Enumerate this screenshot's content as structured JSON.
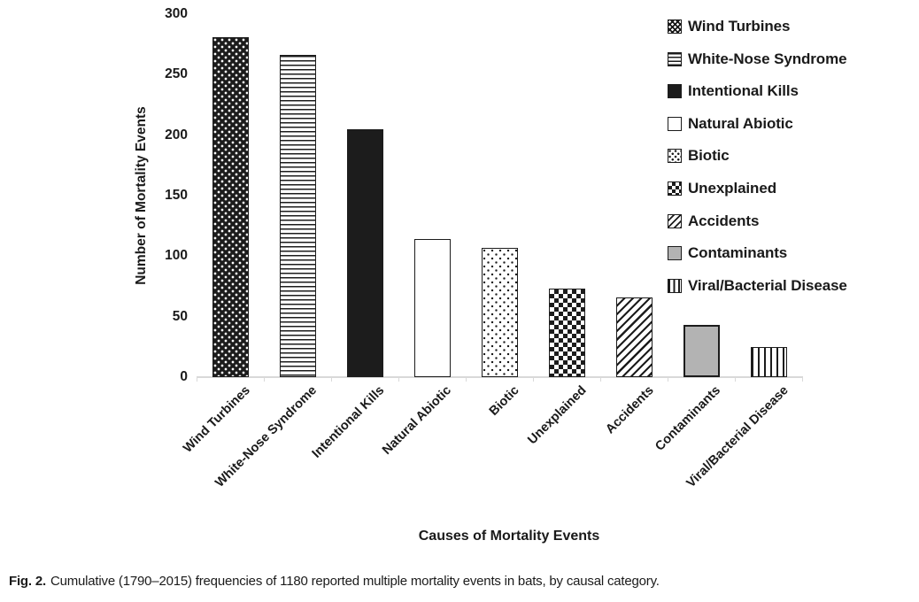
{
  "figure": {
    "caption_label": "Fig. 2.",
    "caption_text": "Cumulative (1790–2015) frequencies of 1180 reported multiple mortality events in bats, by causal category."
  },
  "chart_data": {
    "type": "bar",
    "title": "",
    "xlabel": "Causes of Mortality Events",
    "ylabel": "Number of Mortality Events",
    "ylim": [
      0,
      300
    ],
    "yticks": [
      0,
      50,
      100,
      150,
      200,
      250,
      300
    ],
    "grid": false,
    "legend_position": "upper right",
    "categories": [
      "Wind Turbines",
      "White-Nose Syndrome",
      "Intentional Kills",
      "Natural Abiotic",
      "Biotic",
      "Unexplained",
      "Accidents",
      "Contaminants",
      "Viral/Bacterial Disease"
    ],
    "values": [
      281,
      266,
      205,
      114,
      107,
      73,
      66,
      43,
      25
    ],
    "patterns": [
      "dots-white-on-black",
      "horizontal-lines",
      "solid-black",
      "white",
      "dots-black-on-white",
      "checkerboard",
      "diagonal-stripes",
      "solid-gray",
      "vertical-stripes"
    ],
    "colors": {
      "bar_black": "#1c1c1c",
      "bar_gray_fill": "#b3b3b3",
      "axis_line": "#d9d9d9",
      "text": "#1a1a1a"
    }
  }
}
